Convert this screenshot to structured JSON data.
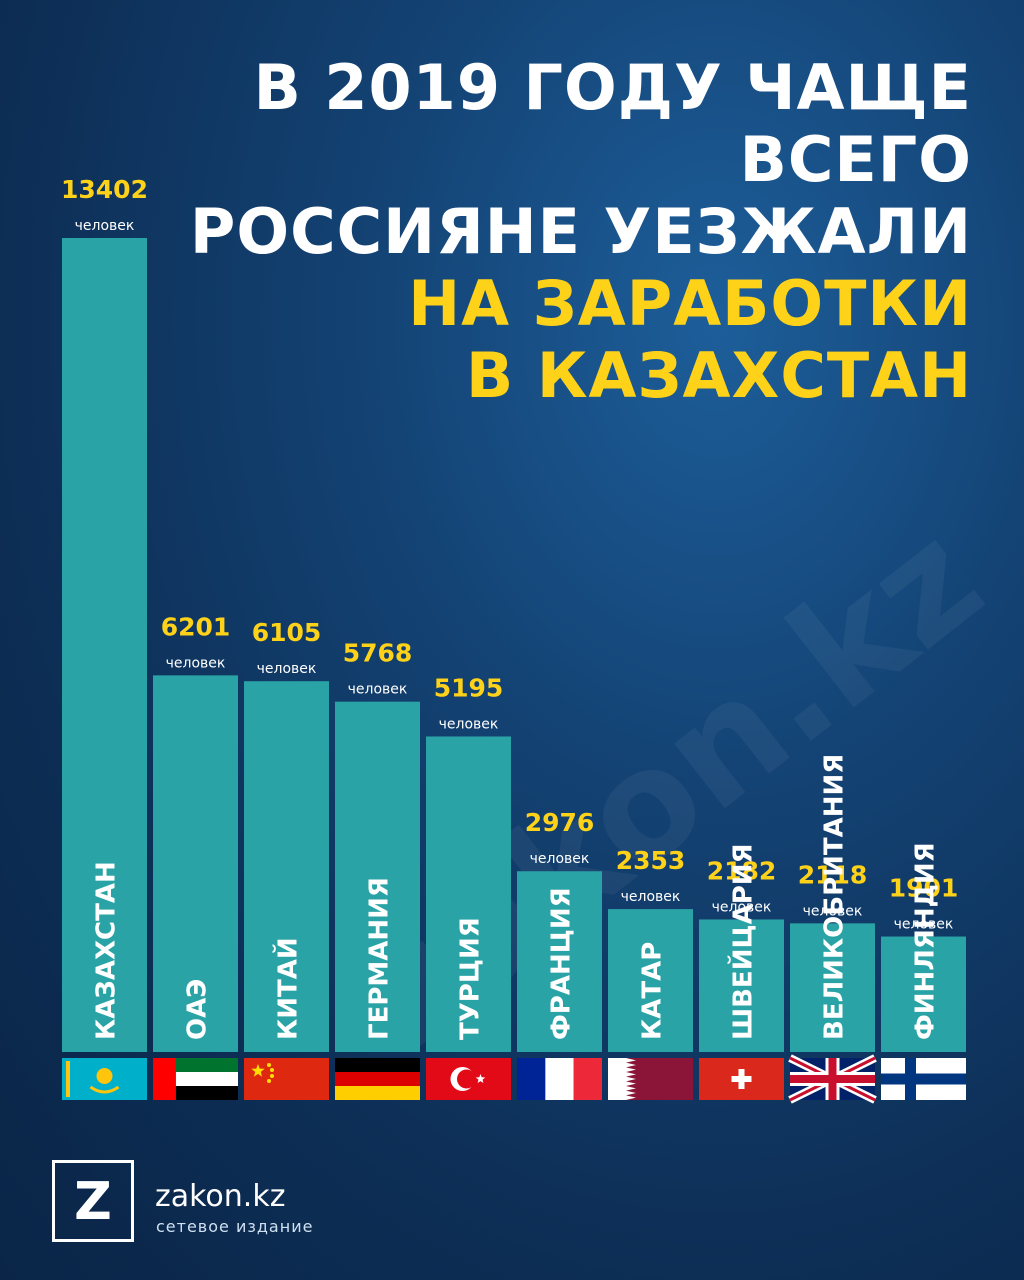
{
  "title": {
    "line1": "В 2019 ГОДУ ЧАЩЕ ВСЕГО",
    "line2": "РОССИЯНЕ УЕЗЖАЛИ",
    "line3": "НА ЗАРАБОТКИ",
    "line4": "В КАЗАХСТАН"
  },
  "watermark": "zakon.kz",
  "footer": {
    "logo_letter": "Z",
    "brand": "zakon.kz",
    "subtitle": "сетевое издание"
  },
  "colors": {
    "bar": "#2aa3a6",
    "value": "#ffd21a",
    "unit": "#ffffff",
    "country": "#ffffff"
  },
  "chart_data": {
    "type": "bar",
    "unit_label": "человек",
    "categories": [
      "КАЗАХСТАН",
      "ОАЭ",
      "КИТАЙ",
      "ГЕРМАНИЯ",
      "ТУРЦИЯ",
      "ФРАНЦИЯ",
      "КАТАР",
      "ШВЕЙЦАРИЯ",
      "ВЕЛИКОБРИТАНИЯ",
      "ФИНЛЯНДИЯ"
    ],
    "values": [
      13402,
      6201,
      6105,
      5768,
      5195,
      2976,
      2353,
      2182,
      2118,
      1901
    ],
    "value_labels": [
      "13402",
      "6201",
      "6105",
      "5768",
      "5195",
      "2976",
      "2353",
      "2182",
      "2118",
      "1901"
    ],
    "flags": [
      "kazakhstan-flag",
      "uae-flag",
      "china-flag",
      "germany-flag",
      "turkey-flag",
      "france-flag",
      "qatar-flag",
      "switzerland-flag",
      "uk-flag",
      "finland-flag"
    ]
  }
}
